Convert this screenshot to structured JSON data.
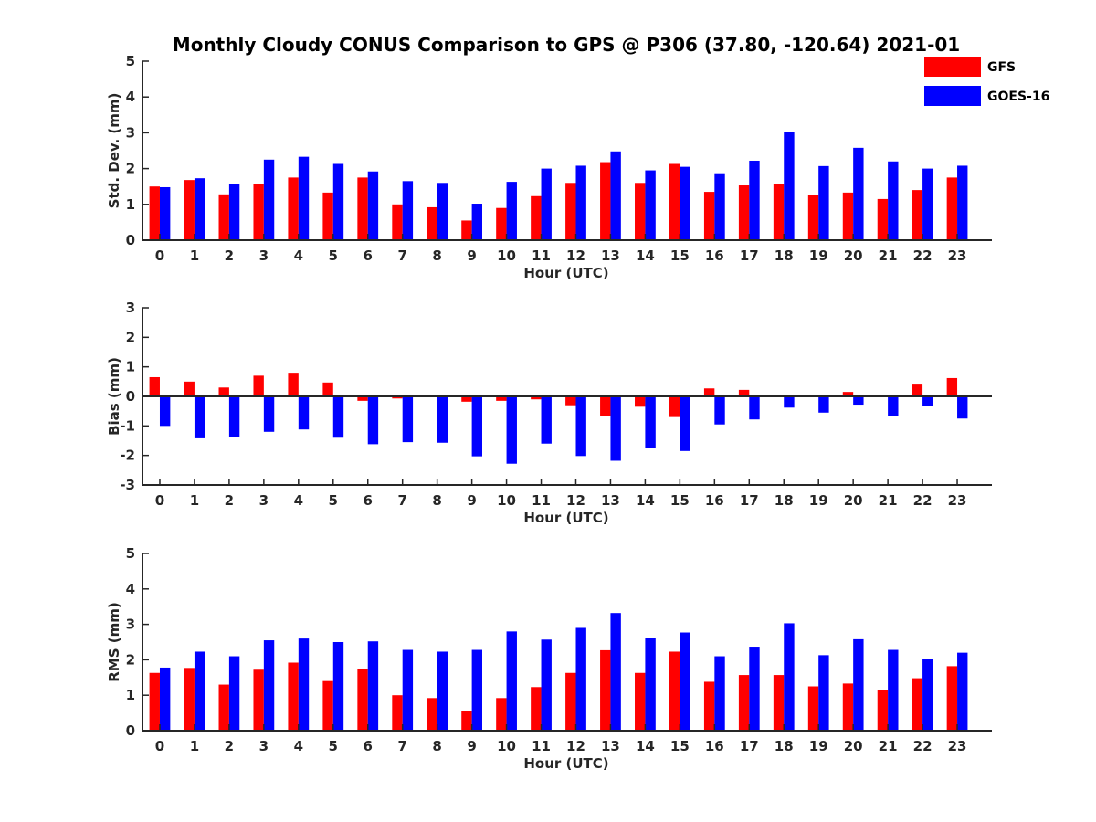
{
  "title": "Monthly Cloudy CONUS Comparison to GPS @ P306 (37.80, -120.64) 2021-01",
  "colors": {
    "GFS": "#ff0000",
    "GOES-16": "#0000ff"
  },
  "legend": {
    "items": [
      "GFS",
      "GOES-16"
    ],
    "placement": "top-right"
  },
  "chart_data": [
    {
      "type": "bar",
      "xlabel": "Hour (UTC)",
      "ylabel": "Std. Dev. (mm)",
      "ylim": [
        0,
        5
      ],
      "yticks": [
        0,
        1,
        2,
        3,
        4,
        5
      ],
      "categories": [
        "0",
        "1",
        "2",
        "3",
        "4",
        "5",
        "6",
        "7",
        "8",
        "9",
        "10",
        "11",
        "12",
        "13",
        "14",
        "15",
        "16",
        "17",
        "18",
        "19",
        "20",
        "21",
        "22",
        "23"
      ],
      "series": [
        {
          "name": "GFS",
          "values": [
            1.5,
            1.68,
            1.28,
            1.57,
            1.75,
            1.33,
            1.75,
            1.0,
            0.92,
            0.55,
            0.9,
            1.23,
            1.6,
            2.18,
            1.6,
            2.13,
            1.35,
            1.53,
            1.57,
            1.25,
            1.33,
            1.15,
            1.4,
            1.75
          ]
        },
        {
          "name": "GOES-16",
          "values": [
            1.48,
            1.73,
            1.58,
            2.25,
            2.33,
            2.13,
            1.92,
            1.65,
            1.6,
            1.02,
            1.63,
            2.0,
            2.08,
            2.48,
            1.95,
            2.05,
            1.87,
            2.22,
            3.02,
            2.07,
            2.58,
            2.2,
            2.0,
            2.08
          ]
        }
      ]
    },
    {
      "type": "bar",
      "xlabel": "Hour (UTC)",
      "ylabel": "Bias (mm)",
      "ylim": [
        -3,
        3
      ],
      "yticks": [
        -3,
        -2,
        -1,
        0,
        1,
        2,
        3
      ],
      "categories": [
        "0",
        "1",
        "2",
        "3",
        "4",
        "5",
        "6",
        "7",
        "8",
        "9",
        "10",
        "11",
        "12",
        "13",
        "14",
        "15",
        "16",
        "17",
        "18",
        "19",
        "20",
        "21",
        "22",
        "23"
      ],
      "series": [
        {
          "name": "GFS",
          "values": [
            0.65,
            0.5,
            0.3,
            0.7,
            0.8,
            0.47,
            -0.15,
            -0.07,
            0.0,
            -0.18,
            -0.15,
            -0.1,
            -0.3,
            -0.65,
            -0.35,
            -0.7,
            0.27,
            0.22,
            0.0,
            0.0,
            0.15,
            0.0,
            0.43,
            0.62
          ]
        },
        {
          "name": "GOES-16",
          "values": [
            -1.0,
            -1.42,
            -1.38,
            -1.2,
            -1.12,
            -1.4,
            -1.62,
            -1.55,
            -1.57,
            -2.03,
            -2.28,
            -1.6,
            -2.02,
            -2.18,
            -1.75,
            -1.85,
            -0.95,
            -0.78,
            -0.38,
            -0.55,
            -0.28,
            -0.68,
            -0.32,
            -0.75
          ]
        }
      ]
    },
    {
      "type": "bar",
      "xlabel": "Hour (UTC)",
      "ylabel": "RMS (mm)",
      "ylim": [
        0,
        5
      ],
      "yticks": [
        0,
        1,
        2,
        3,
        4,
        5
      ],
      "categories": [
        "0",
        "1",
        "2",
        "3",
        "4",
        "5",
        "6",
        "7",
        "8",
        "9",
        "10",
        "11",
        "12",
        "13",
        "14",
        "15",
        "16",
        "17",
        "18",
        "19",
        "20",
        "21",
        "22",
        "23"
      ],
      "series": [
        {
          "name": "GFS",
          "values": [
            1.63,
            1.77,
            1.3,
            1.72,
            1.92,
            1.4,
            1.75,
            1.0,
            0.92,
            0.55,
            0.92,
            1.23,
            1.63,
            2.27,
            1.63,
            2.23,
            1.38,
            1.57,
            1.57,
            1.25,
            1.33,
            1.15,
            1.48,
            1.82
          ]
        },
        {
          "name": "GOES-16",
          "values": [
            1.78,
            2.23,
            2.1,
            2.55,
            2.6,
            2.5,
            2.52,
            2.28,
            2.23,
            2.28,
            2.8,
            2.57,
            2.9,
            3.32,
            2.62,
            2.77,
            2.1,
            2.37,
            3.03,
            2.13,
            2.58,
            2.28,
            2.03,
            2.2
          ]
        }
      ]
    }
  ]
}
